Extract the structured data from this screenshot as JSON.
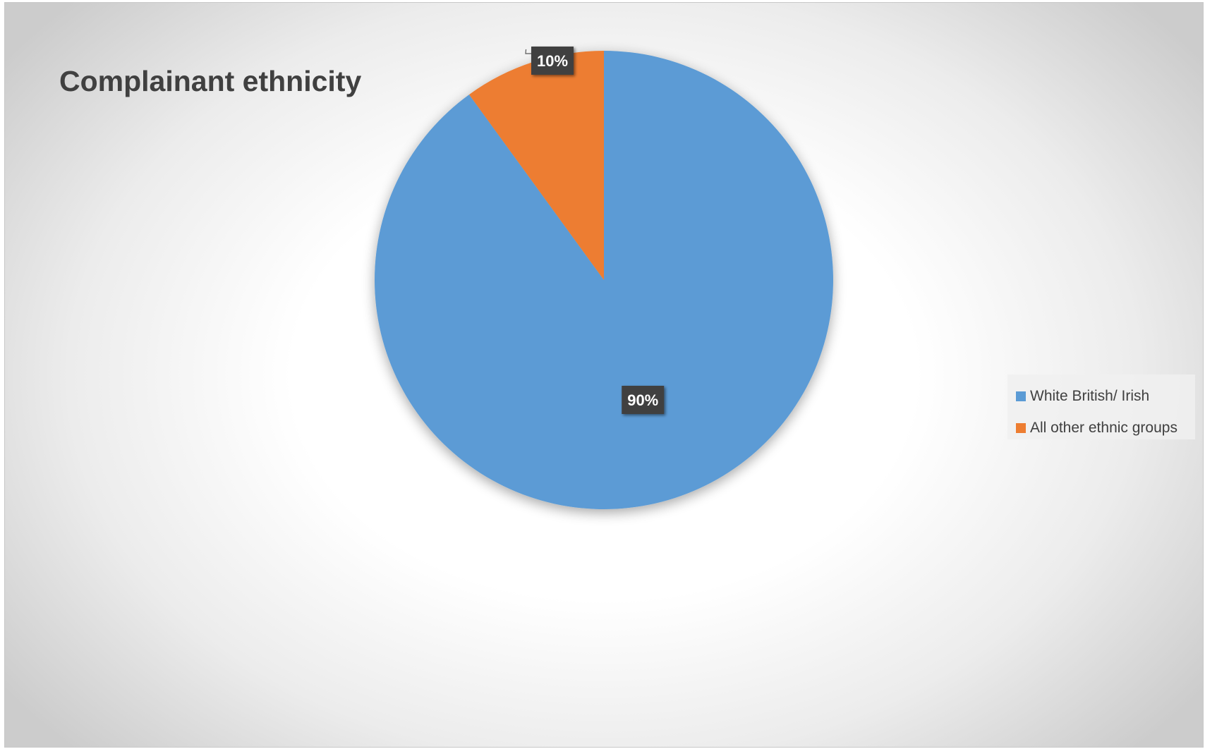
{
  "chart_data": {
    "type": "pie",
    "title": "Complainant ethnicity",
    "categories": [
      "White British/ Irish",
      "All other ethnic groups"
    ],
    "values": [
      90,
      10
    ],
    "data_labels": [
      "90%",
      "10%"
    ],
    "colors": [
      "#5b9bd5",
      "#ed7d31"
    ],
    "legend_position": "right",
    "start_angle": "12 o'clock, clockwise"
  }
}
